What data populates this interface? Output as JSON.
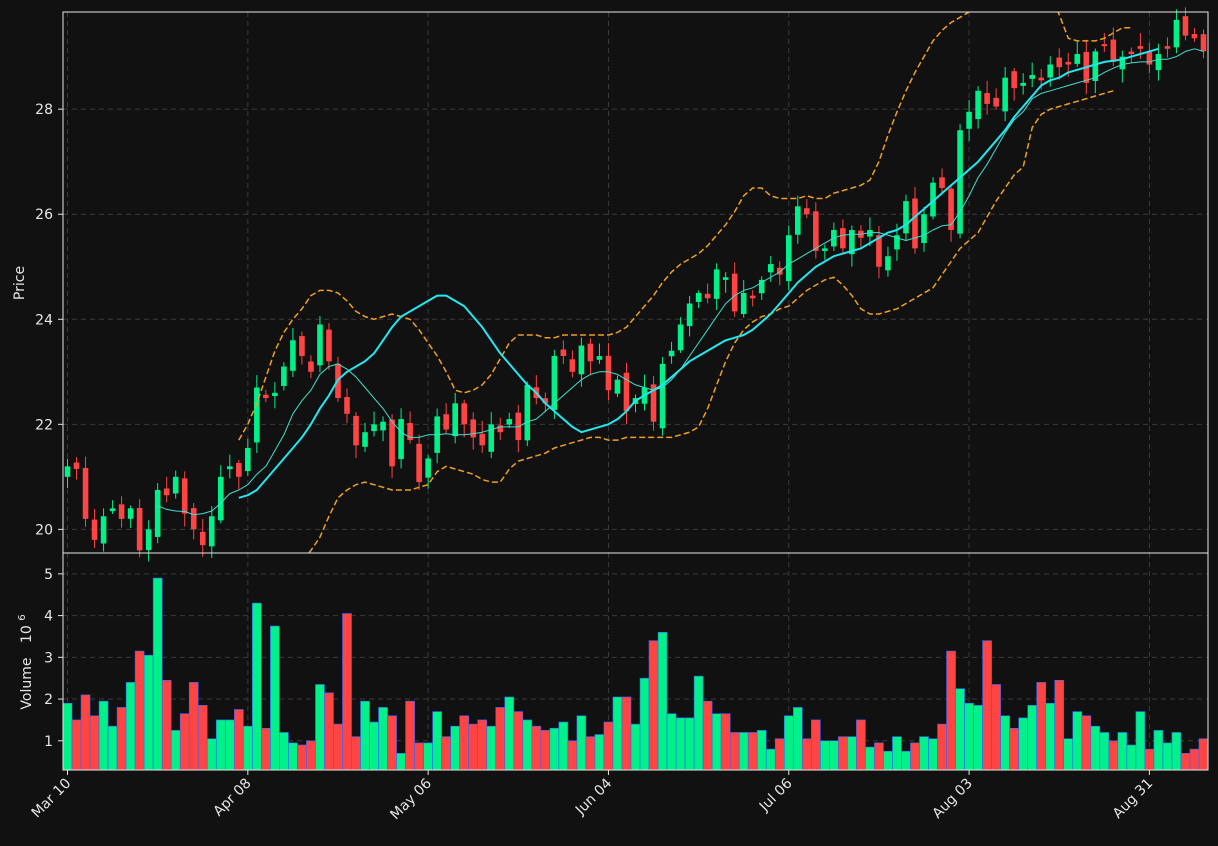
{
  "theme": {
    "background": "#111111",
    "axes_color": "#e6e6e6",
    "grid_color": "#3a3a3a",
    "up_color": "#00f08a",
    "down_color": "#ff4444",
    "bar_edge_color": "#3366ff",
    "ma_slow_color": "#22e8f0",
    "ma_fast_color": "#3fe0d0",
    "band_color": "#f0a020"
  },
  "chart_data": [
    {
      "type": "candlestick",
      "panel": "price",
      "title": "",
      "xlabel": "",
      "ylabel": "Price",
      "ylim": [
        19.55,
        29.85
      ],
      "yticks": [
        20,
        22,
        24,
        26,
        28
      ],
      "grid": true,
      "legend": "none",
      "x_tick_labels": [
        "Mar 10",
        "Apr 08",
        "May 06",
        "Jun 04",
        "Jul 06",
        "Aug 03",
        "Aug 31"
      ],
      "x_tick_indices": [
        0,
        20,
        40,
        60,
        80,
        100,
        120
      ],
      "overlays": [
        "moving-average-fast",
        "moving-average-slow",
        "upper-band",
        "lower-band"
      ],
      "ohlc_description": "daily candles, 127 sessions, close",
      "close": [
        21.2,
        21.15,
        20.2,
        19.8,
        20.25,
        20.4,
        20.2,
        20.4,
        19.6,
        20.0,
        20.75,
        20.65,
        21.0,
        20.3,
        20.0,
        19.7,
        20.25,
        21.0,
        21.2,
        21.0,
        21.55,
        22.7,
        22.5,
        22.6,
        23.1,
        23.6,
        23.3,
        23.0,
        23.9,
        23.2,
        22.5,
        22.2,
        21.6,
        21.85,
        22.0,
        22.05,
        21.2,
        22.1,
        21.7,
        20.9,
        21.35,
        22.15,
        21.9,
        22.4,
        22.0,
        21.75,
        21.6,
        22.0,
        21.85,
        22.1,
        21.7,
        22.75,
        22.5,
        22.4,
        23.3,
        23.3,
        23.0,
        23.5,
        23.2,
        23.3,
        22.65,
        22.85,
        22.25,
        22.5,
        22.7,
        22.05,
        23.15,
        23.4,
        23.9,
        24.3,
        24.5,
        24.4,
        24.95,
        24.8,
        24.15,
        24.5,
        24.4,
        24.75,
        25.05,
        24.85,
        25.6,
        26.15,
        26.0,
        25.3,
        25.35,
        25.7,
        25.35,
        25.7,
        25.55,
        25.7,
        25.0,
        25.2,
        25.6,
        26.25,
        25.35,
        26.0,
        26.6,
        26.5,
        25.7,
        27.6,
        27.95,
        28.35,
        28.1,
        28.05,
        28.6,
        28.4,
        28.5,
        28.65,
        28.55,
        28.85,
        28.8,
        28.85,
        29.05,
        28.5,
        29.1,
        29.2,
        28.9,
        29.0,
        29.05,
        29.15,
        28.85,
        29.05,
        29.15,
        29.7,
        29.4,
        29.35,
        29.1
      ],
      "moving_average_fast": [
        null,
        null,
        null,
        null,
        null,
        null,
        null,
        null,
        null,
        null,
        20.45,
        20.38,
        20.35,
        20.34,
        20.28,
        20.3,
        20.35,
        20.5,
        20.68,
        20.75,
        20.85,
        21.05,
        21.2,
        21.5,
        21.8,
        22.2,
        22.45,
        22.65,
        22.95,
        23.1,
        23.15,
        23.05,
        22.9,
        22.7,
        22.5,
        22.3,
        22.05,
        21.85,
        21.75,
        21.75,
        21.8,
        21.8,
        21.82,
        21.8,
        21.8,
        21.82,
        21.85,
        21.9,
        21.95,
        21.95,
        21.95,
        22.05,
        22.1,
        22.25,
        22.4,
        22.55,
        22.7,
        22.85,
        22.95,
        23.0,
        23.0,
        22.95,
        22.85,
        22.75,
        22.7,
        22.65,
        22.7,
        22.85,
        23.05,
        23.3,
        23.55,
        23.8,
        24.05,
        24.3,
        24.45,
        24.55,
        24.6,
        24.7,
        24.8,
        24.9,
        25.05,
        25.15,
        25.25,
        25.35,
        25.45,
        25.55,
        25.6,
        25.62,
        25.62,
        25.65,
        25.65,
        25.6,
        25.55,
        25.5,
        25.55,
        25.6,
        25.7,
        25.78,
        25.8,
        26.05,
        26.35,
        26.7,
        26.95,
        27.25,
        27.55,
        27.8,
        27.95,
        28.2,
        28.3,
        28.35,
        28.4,
        28.45,
        28.5,
        28.55,
        28.6,
        28.7,
        28.78,
        28.85,
        28.88,
        28.9,
        28.9,
        28.95,
        28.95,
        29.0,
        29.1,
        29.15,
        29.1
      ],
      "moving_average_slow": [
        null,
        null,
        null,
        null,
        null,
        null,
        null,
        null,
        null,
        null,
        null,
        null,
        null,
        null,
        null,
        null,
        null,
        null,
        null,
        20.6,
        20.65,
        20.75,
        20.95,
        21.15,
        21.35,
        21.55,
        21.75,
        22.0,
        22.3,
        22.55,
        22.85,
        23.0,
        23.1,
        23.2,
        23.35,
        23.6,
        23.85,
        24.05,
        24.15,
        24.25,
        24.35,
        24.45,
        24.45,
        24.35,
        24.25,
        24.05,
        23.85,
        23.6,
        23.35,
        23.15,
        22.95,
        22.75,
        22.6,
        22.4,
        22.25,
        22.1,
        21.95,
        21.85,
        21.9,
        21.95,
        22.0,
        22.1,
        22.25,
        22.45,
        22.55,
        22.65,
        22.75,
        22.9,
        23.05,
        23.2,
        23.3,
        23.4,
        23.5,
        23.6,
        23.65,
        23.7,
        23.8,
        23.95,
        24.1,
        24.3,
        24.5,
        24.7,
        24.85,
        25.0,
        25.1,
        25.2,
        25.25,
        25.3,
        25.35,
        25.45,
        25.55,
        25.65,
        25.7,
        25.8,
        25.95,
        26.1,
        26.25,
        26.4,
        26.55,
        26.7,
        26.85,
        27.0,
        27.2,
        27.4,
        27.6,
        27.85,
        28.05,
        28.25,
        28.45,
        28.55,
        28.6,
        28.7,
        28.75,
        28.8,
        28.85,
        28.9,
        28.92,
        28.95,
        29.0,
        29.05,
        29.1,
        29.15
      ],
      "upper_band": [
        null,
        null,
        null,
        null,
        null,
        null,
        null,
        null,
        null,
        null,
        null,
        null,
        null,
        null,
        null,
        null,
        null,
        null,
        null,
        21.7,
        22.0,
        22.4,
        22.9,
        23.4,
        23.75,
        24.0,
        24.2,
        24.45,
        24.55,
        24.55,
        24.5,
        24.35,
        24.15,
        24.05,
        24.0,
        24.05,
        24.1,
        24.05,
        24.0,
        23.8,
        23.55,
        23.3,
        23.0,
        22.65,
        22.6,
        22.65,
        22.75,
        22.95,
        23.25,
        23.55,
        23.7,
        23.7,
        23.7,
        23.65,
        23.65,
        23.7,
        23.7,
        23.7,
        23.7,
        23.7,
        23.7,
        23.75,
        23.85,
        24.05,
        24.25,
        24.45,
        24.7,
        24.9,
        25.05,
        25.15,
        25.25,
        25.4,
        25.6,
        25.8,
        26.05,
        26.35,
        26.5,
        26.5,
        26.35,
        26.3,
        26.3,
        26.3,
        26.35,
        26.3,
        26.3,
        26.4,
        26.45,
        26.5,
        26.55,
        26.65,
        27.0,
        27.5,
        27.95,
        28.35,
        28.7,
        29.0,
        29.3,
        29.5,
        29.65,
        29.75,
        29.85,
        29.95,
        30.0,
        30.1,
        30.15,
        30.2,
        30.2,
        30.2,
        30.2,
        30.2,
        29.8,
        29.35,
        29.3,
        29.3,
        29.3,
        29.35,
        29.45,
        29.55,
        29.55
      ],
      "lower_band": [
        null,
        null,
        null,
        null,
        null,
        null,
        null,
        null,
        null,
        null,
        null,
        null,
        null,
        null,
        null,
        null,
        null,
        null,
        null,
        17.8,
        17.95,
        18.1,
        18.3,
        18.6,
        18.9,
        19.2,
        19.4,
        19.6,
        19.85,
        20.25,
        20.6,
        20.75,
        20.85,
        20.9,
        20.85,
        20.8,
        20.75,
        20.75,
        20.75,
        20.8,
        20.85,
        21.1,
        21.2,
        21.15,
        21.1,
        21.05,
        20.95,
        20.9,
        20.9,
        21.15,
        21.3,
        21.35,
        21.4,
        21.45,
        21.55,
        21.6,
        21.65,
        21.7,
        21.75,
        21.75,
        21.7,
        21.7,
        21.75,
        21.75,
        21.75,
        21.75,
        21.75,
        21.75,
        21.8,
        21.85,
        21.95,
        22.3,
        22.75,
        23.2,
        23.55,
        23.8,
        23.95,
        24.05,
        24.1,
        24.2,
        24.25,
        24.4,
        24.55,
        24.65,
        24.75,
        24.8,
        24.65,
        24.45,
        24.2,
        24.1,
        24.1,
        24.15,
        24.2,
        24.3,
        24.4,
        24.5,
        24.6,
        24.85,
        25.1,
        25.35,
        25.5,
        25.65,
        25.95,
        26.25,
        26.5,
        26.75,
        26.9,
        27.65,
        27.9,
        28.0,
        28.05,
        28.1,
        28.15,
        28.2,
        28.25,
        28.3,
        28.35
      ]
    },
    {
      "type": "bar",
      "panel": "volume",
      "title": "",
      "xlabel": "",
      "ylabel": "Volume",
      "ylabel_exponent": "10",
      "ylabel_exponent_power": "6",
      "ylim": [
        0.3,
        5.5
      ],
      "yticks": [
        1,
        2,
        3,
        4,
        5
      ],
      "grid": true,
      "volume_direction": "up if close >= previous close",
      "values": [
        1.9,
        1.5,
        2.1,
        1.6,
        1.95,
        1.35,
        1.8,
        2.4,
        3.15,
        3.05,
        4.9,
        2.45,
        1.25,
        1.65,
        2.4,
        1.85,
        1.05,
        1.5,
        1.5,
        1.75,
        1.35,
        4.3,
        1.3,
        3.75,
        1.2,
        0.95,
        0.9,
        1.0,
        2.35,
        2.15,
        1.4,
        4.05,
        1.1,
        1.95,
        1.45,
        1.8,
        1.6,
        0.7,
        1.95,
        0.95,
        0.95,
        1.7,
        1.1,
        1.35,
        1.6,
        1.4,
        1.5,
        1.35,
        1.8,
        2.05,
        1.7,
        1.5,
        1.35,
        1.25,
        1.3,
        1.45,
        1.0,
        1.6,
        1.1,
        1.15,
        1.45,
        2.05,
        2.05,
        1.4,
        2.5,
        3.4,
        3.6,
        1.65,
        1.55,
        1.55,
        2.55,
        1.95,
        1.65,
        1.65,
        1.2,
        1.2,
        1.2,
        1.25,
        0.8,
        1.05,
        1.6,
        1.8,
        1.05,
        1.5,
        1.0,
        1.0,
        1.1,
        1.1,
        1.5,
        0.85,
        0.95,
        0.75,
        1.1,
        0.75,
        0.95,
        1.1,
        1.05,
        1.4,
        3.15,
        2.25,
        1.9,
        1.85,
        3.4,
        2.35,
        1.6,
        1.3,
        1.55,
        1.85,
        2.4,
        1.9,
        2.45,
        1.05,
        1.7,
        1.6,
        1.35,
        1.2,
        1.0,
        1.2,
        0.9,
        1.7,
        0.8,
        1.25,
        0.95,
        1.2,
        0.7,
        0.8,
        1.05
      ]
    }
  ]
}
